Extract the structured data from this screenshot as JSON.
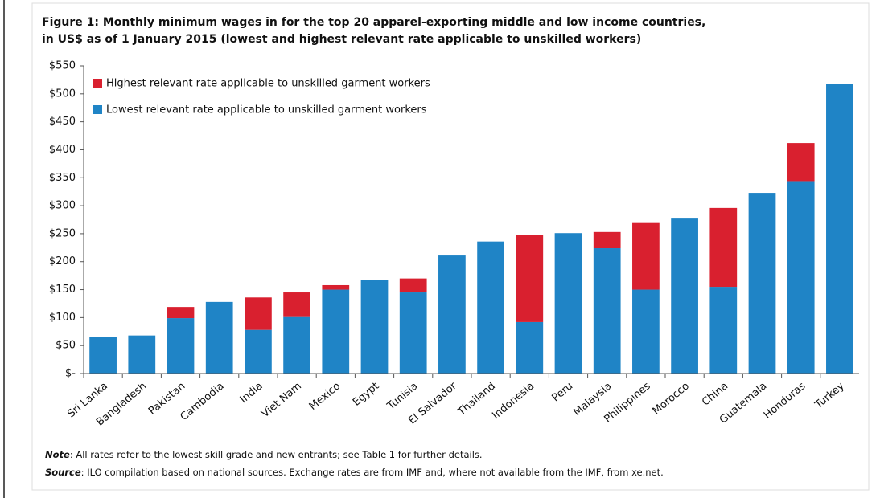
{
  "chart_data": {
    "type": "stacked_bar",
    "title": [
      "Figure 1: Monthly minimum wages in for the top 20 apparel-exporting middle and low income countries,",
      "in US$ as of 1 January 2015 (lowest and highest relevant rate applicable to unskilled workers)"
    ],
    "categories": [
      "Sri Lanka",
      "Bangladesh",
      "Pakistan",
      "Cambodia",
      "India",
      "Viet Nam",
      "Mexico",
      "Egypt",
      "Tunisia",
      "El Salvador",
      "Thailand",
      "Indonesia",
      "Peru",
      "Malaysia",
      "Philippines",
      "Morocco",
      "China",
      "Guatemala",
      "Honduras",
      "Turkey"
    ],
    "series": [
      {
        "name": "Lowest relevant rate applicable to unskilled garment workers",
        "color": "#1f84c6",
        "values": [
          66,
          68,
          99,
          128,
          78,
          101,
          150,
          168,
          145,
          211,
          236,
          92,
          251,
          224,
          150,
          277,
          155,
          323,
          344,
          517
        ]
      },
      {
        "name": "Highest relevant rate applicable to unskilled garment workers",
        "color": "#d9202f",
        "values": [
          null,
          null,
          20,
          null,
          58,
          44,
          8,
          null,
          25,
          null,
          null,
          155,
          null,
          29,
          119,
          null,
          141,
          null,
          68,
          null
        ]
      }
    ],
    "ylim": [
      0,
      550
    ],
    "yticks": [
      {
        "value": 0,
        "label": "$-"
      },
      {
        "value": 50,
        "label": "$50"
      },
      {
        "value": 100,
        "label": "$100"
      },
      {
        "value": 150,
        "label": "$150"
      },
      {
        "value": 200,
        "label": "$200"
      },
      {
        "value": 250,
        "label": "$250"
      },
      {
        "value": 300,
        "label": "$300"
      },
      {
        "value": 350,
        "label": "$350"
      },
      {
        "value": 400,
        "label": "$400"
      },
      {
        "value": 450,
        "label": "$450"
      },
      {
        "value": 500,
        "label": "$500"
      },
      {
        "value": 550,
        "label": "$550"
      }
    ],
    "notes": [
      {
        "label": "Note",
        "text": ": All rates refer to the lowest skill grade and new entrants; see Table 1 for further details."
      },
      {
        "label": "Source",
        "text": ": ILO compilation based on national sources. Exchange rates are from IMF and, where not available from the IMF, from xe.net."
      }
    ]
  }
}
